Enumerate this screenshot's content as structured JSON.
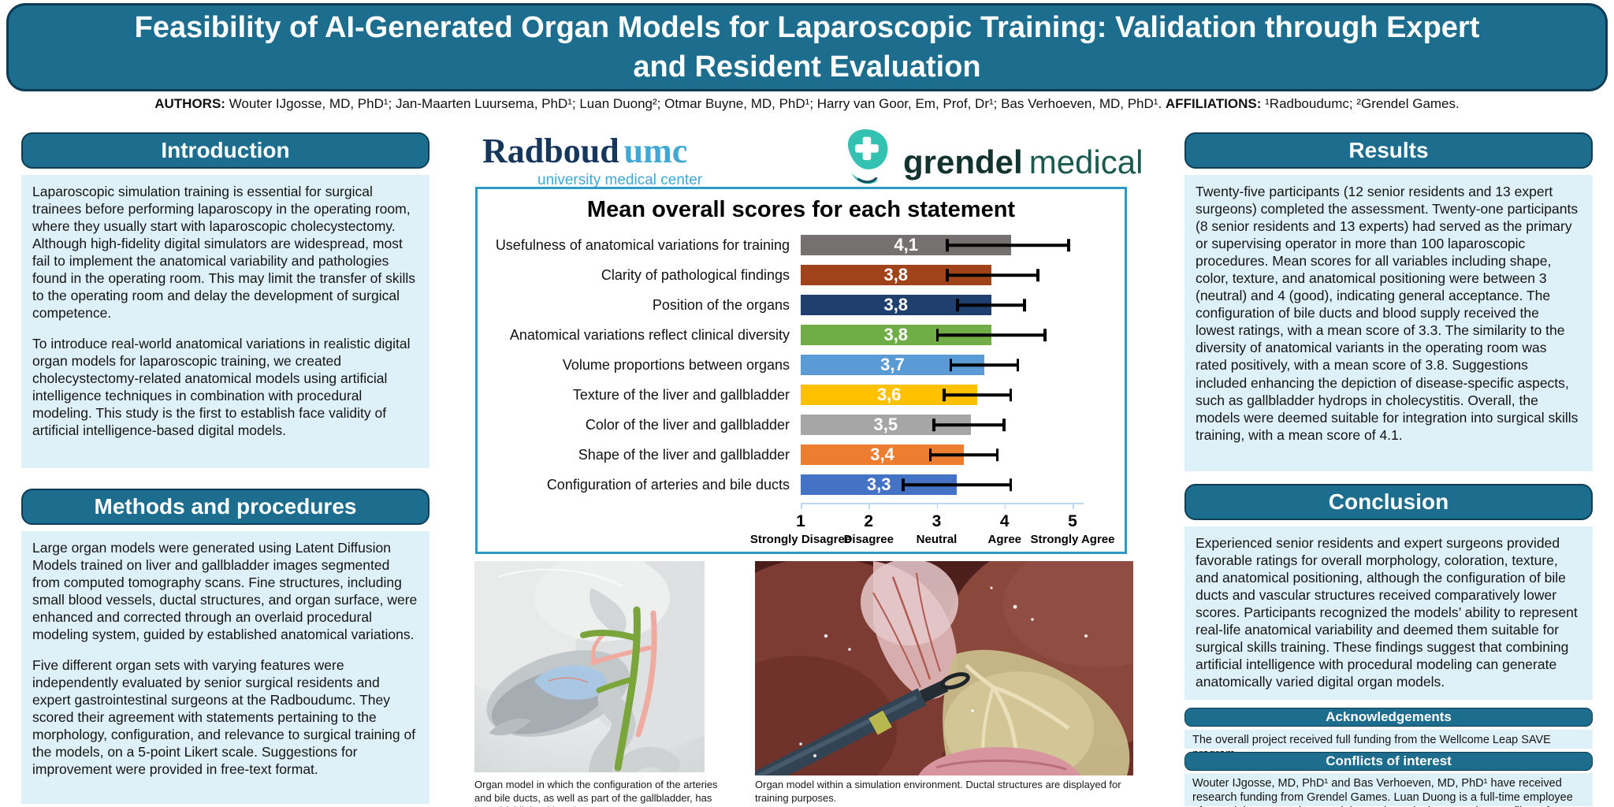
{
  "poster": {
    "title_line1": "Feasibility of AI-Generated Organ Models for Laparoscopic Training: Validation through Expert",
    "title_line2": "and Resident Evaluation",
    "authors_label": "AUTHORS:",
    "authors": " Wouter IJgosse, MD, PhD¹; Jan-Maarten Luursema, PhD¹; Luan Duong²; Otmar Buyne, MD, PhD¹; Harry van Goor, Em, Prof, Dr¹; Bas Verhoeven, MD, PhD¹. ",
    "affiliations_label": "AFFILIATIONS:",
    "affiliations": " ¹Radboudumc; ²Grendel Games."
  },
  "sections": {
    "introduction": {
      "title": "Introduction",
      "p1": "Laparoscopic simulation training is essential for surgical trainees before performing laparoscopy in the operating room, where they usually start with laparoscopic cholecystectomy. Although high-fidelity digital simulators are widespread, most fail to implement the anatomical variability and pathologies found in the operating room. This may limit the transfer of skills to the operating room and delay the development of surgical competence.",
      "p2": "To introduce real-world anatomical variations in realistic digital organ models for laparoscopic training, we created cholecystectomy-related anatomical models using artificial intelligence techniques in combination with procedural modeling. This study is the first to establish face validity of artificial intelligence-based digital models."
    },
    "methods": {
      "title": "Methods and procedures",
      "p1": "Large organ models were generated using Latent Diffusion Models trained on liver and gallbladder images segmented from computed tomography scans. Fine structures, including small blood vessels, ductal structures, and organ surface, were enhanced and corrected through an overlaid procedural modeling system, guided by established anatomical variations.",
      "p2": "Five different organ sets with varying features were independently evaluated by senior surgical residents and expert gastrointestinal surgeons at the Radboudumc. They scored their agreement with statements pertaining to the morphology, configuration, and relevance to surgical training of the models, on a 5-point Likert scale. Suggestions for improvement were provided in free-text format."
    },
    "results": {
      "title": "Results",
      "p1": "Twenty-five participants (12 senior residents and 13 expert surgeons) completed the assessment. Twenty-one participants (8 senior residents and 13 experts) had served as the primary or supervising operator in more than 100 laparoscopic procedures. Mean scores for all variables including shape, color, texture, and anatomical positioning were between 3 (neutral) and 4 (good), indicating general acceptance. The configuration of bile ducts and blood supply received the lowest ratings, with a mean score of 3.3. The similarity to the diversity of anatomical variants in the operating room was rated positively, with a mean score of 3.8. Suggestions included enhancing the depiction of disease-specific aspects, such as gallbladder hydrops in cholecystitis. Overall, the models were deemed suitable for integration into surgical skills training, with a mean score of 4.1."
    },
    "conclusion": {
      "title": "Conclusion",
      "p1": "Experienced senior residents and expert surgeons provided favorable ratings for overall morphology, coloration, texture, and anatomical positioning, although the configuration of bile ducts and vascular structures received comparatively lower scores. Participants recognized the models’ ability to represent real-life anatomical variability and deemed them suitable for surgical skills training. These findings suggest that combining artificial intelligence with procedural modeling can generate anatomically varied digital organ models."
    },
    "acknowledgements": {
      "title": "Acknowledgements",
      "text": "The overall project received full funding from the Wellcome Leap SAVE program."
    },
    "conflicts": {
      "title": "Conflicts of interest",
      "text": "Wouter IJgosse, MD, PhD¹ and Bas Verhoeven, MD, PhD¹ have received research funding from Grendel Games. Luan Duong is a full-time employee of Grendel Games. The remaining authors declare no other conflicts of interest."
    }
  },
  "logos": {
    "radboud": {
      "wordmark_main": "Radboud",
      "wordmark_suffix": "umc",
      "subtitle": "university medical center"
    },
    "grendel": {
      "word1": "grendel",
      "word2": "medical"
    }
  },
  "chart_data": {
    "type": "bar",
    "orientation": "horizontal",
    "title": "Mean overall scores for each statement",
    "categories": [
      "Usefulness of anatomical variations for training",
      "Clarity of pathological findings",
      "Position of the organs",
      "Anatomical variations reflect clinical diversity",
      "Volume proportions between organs",
      "Texture of the liver and gallbladder",
      "Color of the liver and gallbladder",
      "Shape of the liver and gallbladder",
      "Configuration of arteries and bile ducts"
    ],
    "values": [
      4.1,
      3.8,
      3.8,
      3.8,
      3.7,
      3.6,
      3.5,
      3.4,
      3.3
    ],
    "value_labels": [
      "4,1",
      "3,8",
      "3,8",
      "3,8",
      "3,7",
      "3,6",
      "3,5",
      "3,4",
      "3,3"
    ],
    "error_low": [
      3.15,
      3.15,
      3.3,
      3.0,
      3.2,
      3.1,
      2.95,
      2.9,
      2.5
    ],
    "error_high": [
      4.95,
      4.5,
      4.3,
      4.6,
      4.2,
      4.1,
      4.0,
      3.9,
      4.1
    ],
    "bar_colors": [
      "#767171",
      "#A0431B",
      "#1F3F6E",
      "#70AD47",
      "#5B9BD5",
      "#FFC000",
      "#A6A6A6",
      "#ED7D31",
      "#4472C4"
    ],
    "xlim": [
      1,
      5
    ],
    "x_ticks": [
      {
        "value": "1",
        "label": "Strongly Disagree"
      },
      {
        "value": "2",
        "label": "Disagree"
      },
      {
        "value": "3",
        "label": "Neutral"
      },
      {
        "value": "4",
        "label": "Agree"
      },
      {
        "value": "5",
        "label": "Strongly Agree"
      }
    ],
    "grid": false,
    "legend": "none"
  },
  "figures": {
    "left_caption": "Organ model in which the configuration of the arteries and bile ducts, as well as part of the gallbladder, has been highlighted in color.",
    "right_caption": "Organ model within a simulation environment. Ductal structures are displayed for training purposes."
  },
  "colors": {
    "header_teal": "#1C6D8E",
    "header_border": "#0C3C55",
    "panel_bg": "#DFF1F8",
    "chart_border": "#2E9BC4",
    "axis_color": "#BDD7EE",
    "radboud_dark": "#16365C",
    "radboud_light": "#3FA8D4",
    "grendel_teal": "#33C1B1"
  }
}
